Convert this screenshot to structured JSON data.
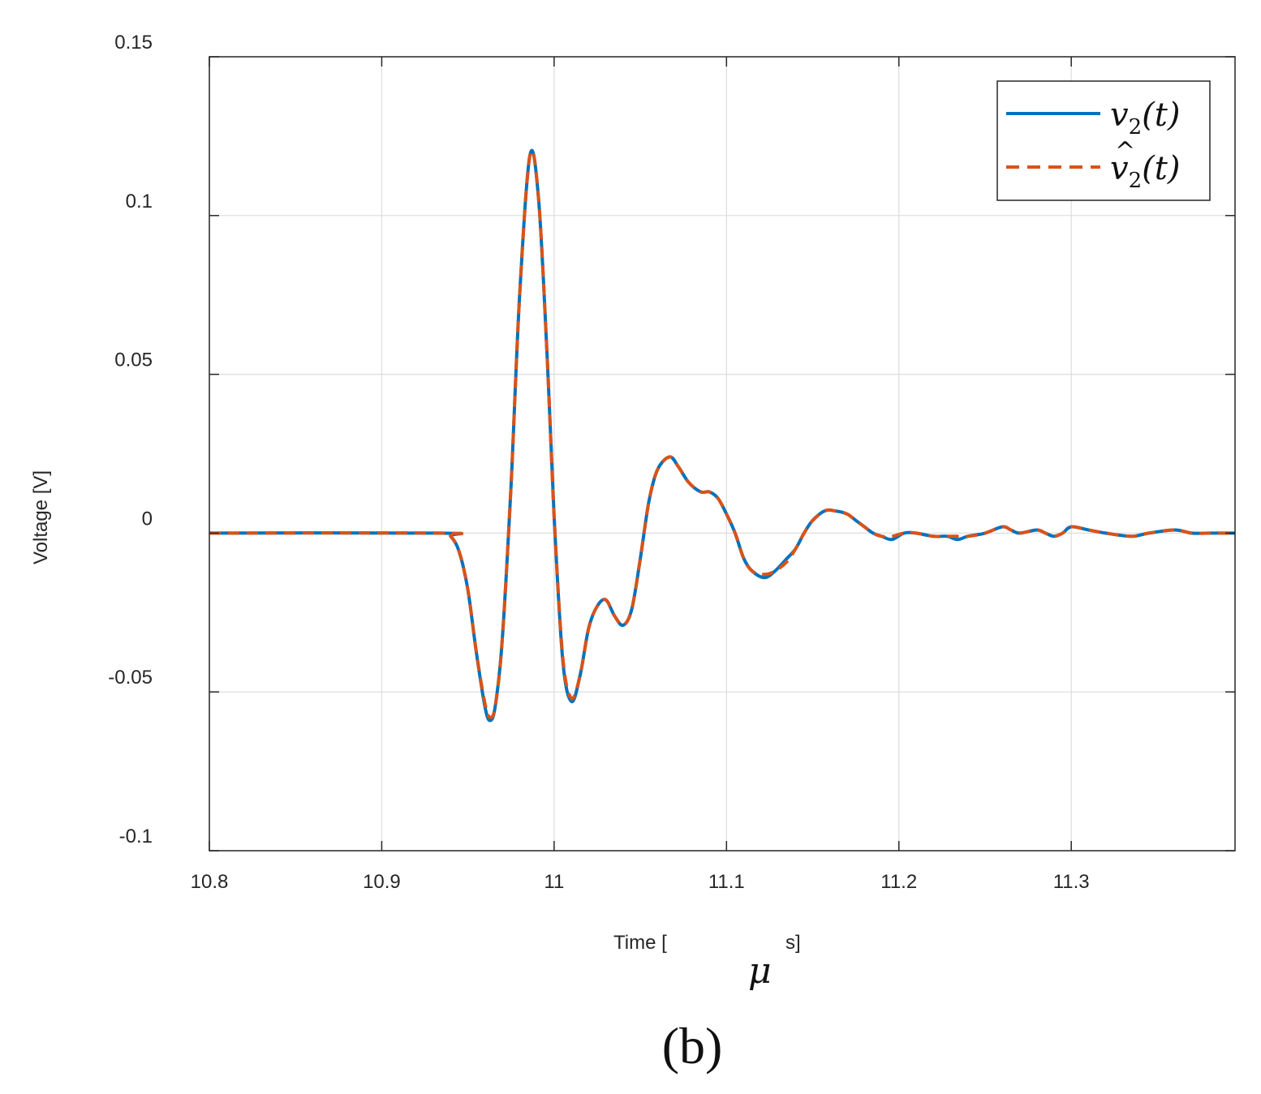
{
  "chart_data": {
    "type": "line",
    "xlabel_prefix": "Time [",
    "xlabel_symbol": "μ",
    "xlabel_suffix": "s]",
    "ylabel": "Voltage [V]",
    "panel_label": "(b)",
    "xlim": [
      10.8,
      11.395
    ],
    "ylim": [
      -0.1,
      0.15
    ],
    "xticks": [
      10.8,
      10.9,
      11,
      11.1,
      11.2,
      11.3
    ],
    "xtick_labels": [
      "10.8",
      "10.9",
      "11",
      "11.1",
      "11.2",
      "11.3"
    ],
    "yticks": [
      -0.1,
      -0.05,
      0,
      0.05,
      0.1,
      0.15
    ],
    "ytick_labels": [
      "-0.1",
      "-0.05",
      "0",
      "0.05",
      "0.1",
      "0.15"
    ],
    "grid": true,
    "legend_position": "top-right",
    "series": [
      {
        "name": "v2(t)",
        "name_main": "v",
        "name_sub": "2",
        "name_tail": "(t)",
        "hat": false,
        "color": "#0072BD",
        "style": "solid",
        "x": [
          10.8,
          10.935,
          10.94,
          10.945,
          10.95,
          10.955,
          10.96,
          10.963,
          10.966,
          10.97,
          10.975,
          10.98,
          10.986,
          10.991,
          10.996,
          11.0,
          11.005,
          11.01,
          11.015,
          11.02,
          11.025,
          11.03,
          11.035,
          11.04,
          11.045,
          11.05,
          11.055,
          11.06,
          11.067,
          11.072,
          11.078,
          11.085,
          11.09,
          11.095,
          11.1,
          11.105,
          11.11,
          11.115,
          11.122,
          11.128,
          11.135,
          11.14,
          11.145,
          11.15,
          11.157,
          11.163,
          11.17,
          11.175,
          11.18,
          11.185,
          11.19,
          11.196,
          11.203,
          11.21,
          11.22,
          11.228,
          11.234,
          11.24,
          11.25,
          11.26,
          11.265,
          11.27,
          11.28,
          11.285,
          11.29,
          11.295,
          11.3,
          11.31,
          11.32,
          11.335,
          11.345,
          11.36,
          11.37,
          11.38,
          11.395
        ],
        "y": [
          0,
          0,
          -0.001,
          -0.006,
          -0.018,
          -0.038,
          -0.055,
          -0.059,
          -0.054,
          -0.033,
          0.015,
          0.075,
          0.119,
          0.105,
          0.055,
          0.005,
          -0.04,
          -0.053,
          -0.045,
          -0.03,
          -0.023,
          -0.021,
          -0.026,
          -0.029,
          -0.024,
          -0.008,
          0.01,
          0.02,
          0.024,
          0.021,
          0.016,
          0.013,
          0.013,
          0.011,
          0.006,
          0.0,
          -0.008,
          -0.012,
          -0.014,
          -0.012,
          -0.008,
          -0.005,
          0.0,
          0.004,
          0.007,
          0.007,
          0.006,
          0.004,
          0.002,
          0.0,
          -0.001,
          -0.002,
          0.0,
          0.0,
          -0.001,
          -0.001,
          -0.002,
          -0.001,
          0.0,
          0.002,
          0.001,
          0.0,
          0.001,
          0.0,
          -0.001,
          0.0,
          0.002,
          0.001,
          0.0,
          -0.001,
          0.0,
          0.001,
          0.0,
          0.0,
          0.0
        ]
      },
      {
        "name": "v̂2(t)",
        "name_main": "v",
        "name_sub": "2",
        "name_tail": "(t)",
        "hat": true,
        "color": "#D95319",
        "style": "dashed",
        "x": [
          10.8,
          10.935,
          10.94,
          10.945,
          10.95,
          10.955,
          10.96,
          10.963,
          10.966,
          10.97,
          10.975,
          10.98,
          10.986,
          10.991,
          10.996,
          11.0,
          11.005,
          11.01,
          11.015,
          11.02,
          11.025,
          11.03,
          11.035,
          11.04,
          11.045,
          11.05,
          11.055,
          11.06,
          11.067,
          11.072,
          11.078,
          11.085,
          11.09,
          11.095,
          11.1,
          11.105,
          11.11,
          11.115,
          11.122,
          11.128,
          11.135,
          11.14,
          11.145,
          11.15,
          11.157,
          11.163,
          11.17,
          11.175,
          11.18,
          11.185,
          11.19,
          11.196,
          11.203,
          11.21,
          11.22,
          11.228,
          11.234,
          11.24,
          11.25,
          11.26,
          11.265,
          11.27,
          11.28,
          11.285,
          11.29,
          11.295,
          11.3,
          11.31,
          11.32,
          11.335,
          11.345,
          11.36,
          11.37,
          11.38,
          11.395
        ],
        "y": [
          0,
          0,
          -0.001,
          -0.006,
          -0.018,
          -0.038,
          -0.054,
          -0.058,
          -0.054,
          -0.033,
          0.015,
          0.075,
          0.119,
          0.105,
          0.055,
          0.005,
          -0.039,
          -0.052,
          -0.045,
          -0.03,
          -0.023,
          -0.021,
          -0.026,
          -0.029,
          -0.024,
          -0.008,
          0.01,
          0.02,
          0.024,
          0.021,
          0.016,
          0.013,
          0.013,
          0.011,
          0.006,
          0.0,
          -0.008,
          -0.012,
          -0.013,
          -0.012,
          -0.009,
          -0.005,
          0.0,
          0.004,
          0.007,
          0.007,
          0.006,
          0.004,
          0.002,
          0.0,
          -0.001,
          -0.001,
          0.0,
          0.0,
          -0.001,
          -0.001,
          -0.001,
          -0.001,
          0.0,
          0.002,
          0.001,
          0.0,
          0.001,
          0.0,
          -0.001,
          0.0,
          0.002,
          0.001,
          0.0,
          -0.001,
          0.0,
          0.001,
          0.0,
          0.0,
          0.0
        ]
      }
    ]
  }
}
